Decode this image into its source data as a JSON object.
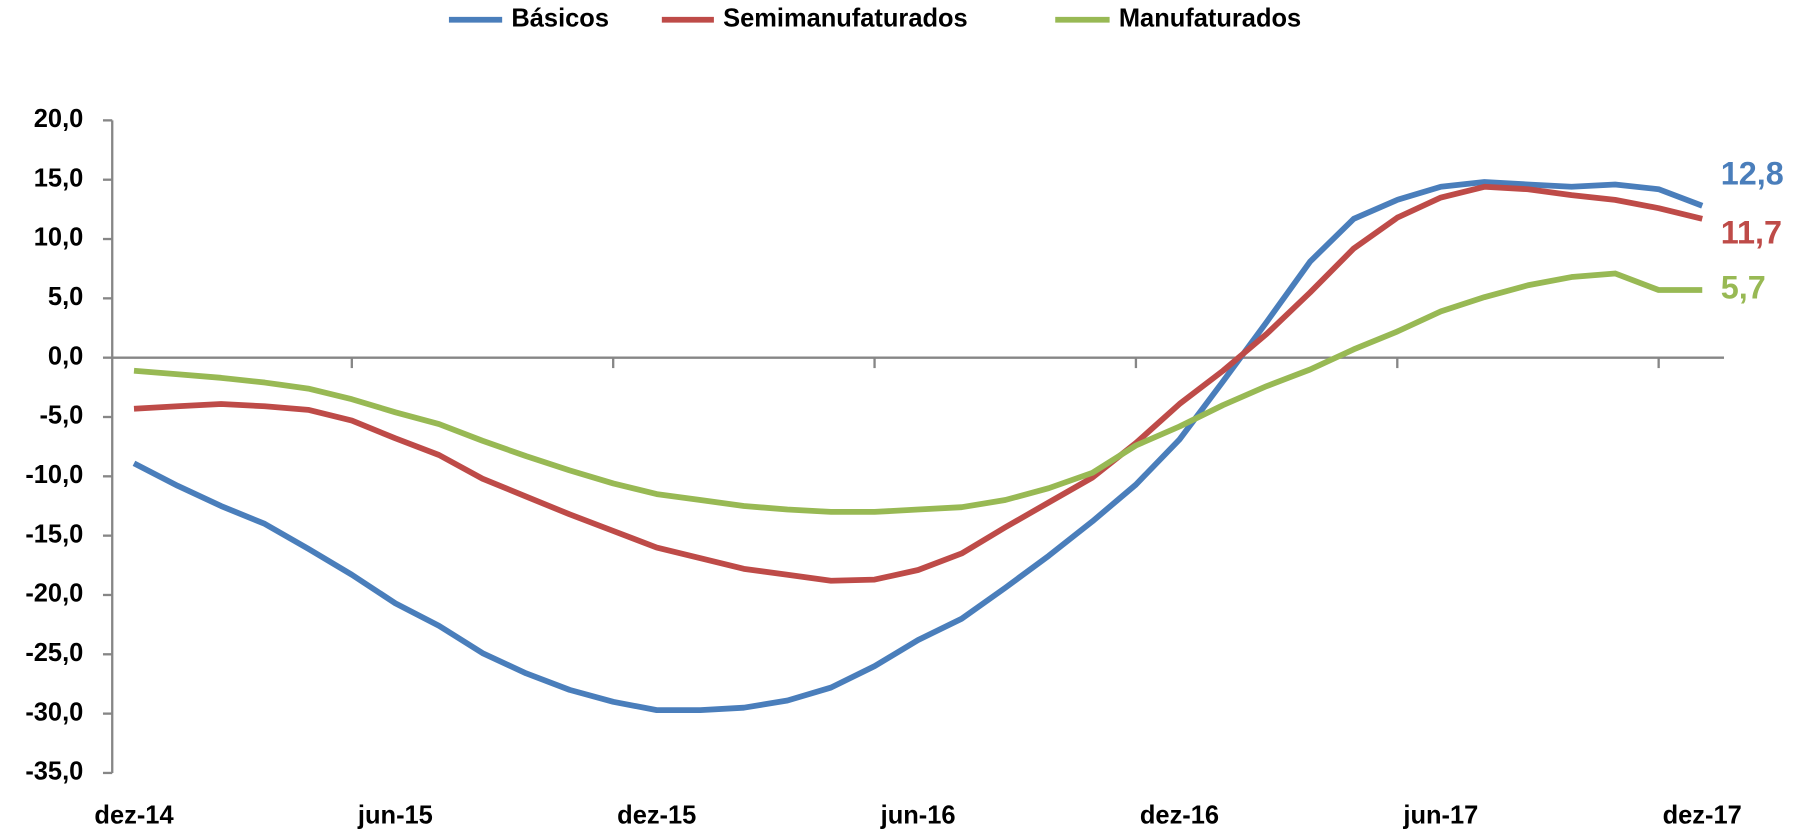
{
  "chart_data": {
    "type": "line",
    "categories": [
      "dez-14",
      null,
      null,
      null,
      null,
      null,
      "jun-15",
      null,
      null,
      null,
      null,
      null,
      "dez-15",
      null,
      null,
      null,
      null,
      null,
      "jun-16",
      null,
      null,
      null,
      null,
      null,
      "dez-16",
      null,
      null,
      null,
      null,
      null,
      "jun-17",
      null,
      null,
      null,
      null,
      null,
      "dez-17"
    ],
    "series": [
      {
        "name": "Básicos",
        "color": "#4a7ebb",
        "values": [
          -8.9,
          -10.8,
          -12.5,
          -14.0,
          -16.1,
          -18.3,
          -20.7,
          -22.6,
          -24.9,
          -26.6,
          -28.0,
          -29.0,
          -29.7,
          -29.7,
          -29.5,
          -28.9,
          -27.8,
          -26.0,
          -23.8,
          -22.0,
          -19.4,
          -16.7,
          -13.8,
          -10.7,
          -6.9,
          -2.0,
          3.0,
          8.1,
          11.7,
          13.3,
          14.4,
          14.8,
          14.6,
          14.4,
          14.6,
          14.2,
          12.8
        ],
        "value_labels": [
          null,
          null,
          null,
          null,
          null,
          null,
          null,
          null,
          null,
          null,
          null,
          null,
          null,
          null,
          null,
          null,
          null,
          null,
          null,
          null,
          null,
          null,
          null,
          null,
          null,
          null,
          null,
          null,
          null,
          null,
          null,
          null,
          null,
          null,
          null,
          null,
          "12,8"
        ]
      },
      {
        "name": "Semimanufaturados",
        "color": "#be4b48",
        "values": [
          -4.3,
          -4.1,
          -3.9,
          -4.1,
          -4.4,
          -5.3,
          -6.8,
          -8.2,
          -10.2,
          -11.7,
          -13.2,
          -14.6,
          -16.0,
          -16.9,
          -17.8,
          -18.3,
          -18.8,
          -18.7,
          -17.9,
          -16.5,
          -14.3,
          -12.2,
          -10.1,
          -7.2,
          -3.9,
          -1.1,
          2.0,
          5.5,
          9.2,
          11.8,
          13.5,
          14.4,
          14.2,
          13.7,
          13.3,
          12.6,
          11.7
        ],
        "value_labels": [
          null,
          null,
          null,
          null,
          null,
          null,
          null,
          null,
          null,
          null,
          null,
          null,
          null,
          null,
          null,
          null,
          null,
          null,
          null,
          null,
          null,
          null,
          null,
          null,
          null,
          null,
          null,
          null,
          null,
          null,
          null,
          null,
          null,
          null,
          null,
          null,
          "11,7"
        ]
      },
      {
        "name": "Manufaturados",
        "color": "#98b954",
        "values": [
          -1.1,
          -1.4,
          -1.7,
          -2.1,
          -2.6,
          -3.5,
          -4.6,
          -5.6,
          -7.0,
          -8.3,
          -9.5,
          -10.6,
          -11.5,
          -12.0,
          -12.5,
          -12.8,
          -13.0,
          -13.0,
          -12.8,
          -12.6,
          -12.0,
          -11.0,
          -9.7,
          -7.4,
          -5.8,
          -4.0,
          -2.4,
          -1.0,
          0.7,
          2.2,
          3.9,
          5.1,
          6.1,
          6.8,
          7.1,
          5.7,
          5.7
        ],
        "value_labels": [
          null,
          null,
          null,
          null,
          null,
          null,
          null,
          null,
          null,
          null,
          null,
          null,
          null,
          null,
          null,
          null,
          null,
          null,
          null,
          null,
          null,
          null,
          null,
          null,
          null,
          null,
          null,
          null,
          null,
          null,
          null,
          null,
          null,
          null,
          null,
          null,
          "5,7"
        ]
      }
    ],
    "ylim": [
      -35,
      20
    ],
    "yticks": [
      {
        "value": -35,
        "label": "-35,0"
      },
      {
        "value": -30,
        "label": "-30,0"
      },
      {
        "value": -25,
        "label": "-25,0"
      },
      {
        "value": -20,
        "label": "-20,0"
      },
      {
        "value": -15,
        "label": "-15,0"
      },
      {
        "value": -10,
        "label": "-10,0"
      },
      {
        "value": -5,
        "label": "-5,0"
      },
      {
        "value": 0,
        "label": "0,0"
      },
      {
        "value": 5,
        "label": "5,0"
      },
      {
        "value": 10,
        "label": "10,0"
      },
      {
        "value": 15,
        "label": "15,0"
      },
      {
        "value": 20,
        "label": "20,0"
      }
    ],
    "legend": "top"
  }
}
